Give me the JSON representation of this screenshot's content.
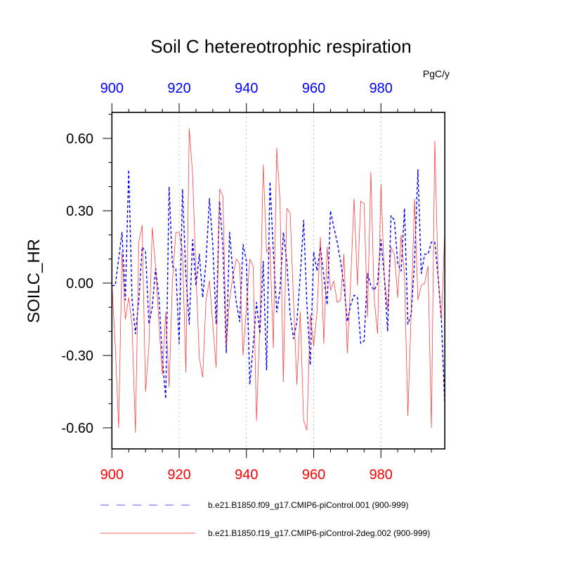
{
  "chart_data": {
    "type": "line",
    "title": "Soil C hetereotrophic respiration",
    "units": "PgC/y",
    "ylabel": "SOILC_HR",
    "xlabel": "",
    "xlim": [
      900,
      999
    ],
    "ylim": [
      -0.69,
      0.71
    ],
    "x_ticks": [
      "900",
      "920",
      "940",
      "960",
      "980"
    ],
    "y_ticks": [
      "0.60",
      "0.30",
      "0.00",
      "-0.30",
      "-0.60"
    ],
    "grid": "vertical dotted at major x ticks",
    "top_axis_color": "#0000ff",
    "bottom_axis_color": "#ff0000",
    "legend_position": "bottom",
    "x_start": 900,
    "series": [
      {
        "name": "b.e21.B1850.f09_g17.CMIP6-piControl.001 (900-999)",
        "color": "#0000ff",
        "style": "dashed",
        "values": [
          -0.01,
          -0.01,
          0.1,
          0.21,
          -0.07,
          0.47,
          -0.07,
          -0.21,
          -0.07,
          0.15,
          0.13,
          -0.17,
          -0.1,
          0.06,
          -0.06,
          -0.31,
          -0.48,
          0.4,
          0.07,
          0.06,
          -0.25,
          0.39,
          0.03,
          -0.17,
          0.18,
          -0.01,
          0.12,
          -0.06,
          0.09,
          0.35,
          0.16,
          -0.17,
          0.34,
          0.15,
          -0.29,
          0.21,
          0.04,
          -0.08,
          -0.16,
          0.16,
          0.09,
          -0.42,
          -0.26,
          -0.08,
          -0.21,
          0.09,
          -0.36,
          0.42,
          0.13,
          -0.12,
          -0.03,
          0.21,
          0.09,
          -0.13,
          -0.23,
          -0.16,
          0.03,
          0.26,
          -0.09,
          -0.34,
          0.13,
          0.05,
          0.15,
          0.03,
          -0.09,
          0.3,
          0.23,
          0.17,
          0.09,
          -0.01,
          -0.16,
          -0.09,
          -0.05,
          -0.06,
          -0.25,
          -0.24,
          0.04,
          -0.01,
          -0.03,
          0.0,
          0.18,
          0.03,
          -0.2,
          0.28,
          0.26,
          0.08,
          0.05,
          0.31,
          -0.17,
          -0.13,
          0.09,
          0.47,
          0.04,
          0.12,
          0.12,
          0.17,
          0.17,
          0.03,
          -0.16,
          -0.51
        ]
      },
      {
        "name": "b.e21.B1850.f19_g17.CMIP6-piControl-2deg.002 (900-999)",
        "color": "#ff0000",
        "style": "solid",
        "values": [
          0.0,
          -0.26,
          -0.6,
          0.13,
          -0.15,
          -0.06,
          -0.17,
          -0.62,
          0.17,
          0.24,
          -0.45,
          -0.26,
          0.23,
          0.07,
          -0.17,
          -0.38,
          -0.12,
          -0.43,
          0.01,
          0.21,
          0.21,
          0.13,
          -0.37,
          0.64,
          0.45,
          0.03,
          -0.31,
          -0.39,
          -0.07,
          0.01,
          -0.17,
          -0.35,
          0.39,
          0.36,
          -0.26,
          -0.07,
          0.03,
          0.1,
          0.08,
          -0.3,
          -0.1,
          0.1,
          0.07,
          -0.57,
          -0.17,
          0.49,
          0.13,
          0.15,
          -0.27,
          0.56,
          0.34,
          -0.41,
          0.31,
          0.29,
          -0.07,
          -0.42,
          -0.12,
          -0.57,
          -0.61,
          -0.13,
          -0.26,
          -0.12,
          0.19,
          -0.25,
          0.15,
          -0.03,
          0.01,
          -0.08,
          -0.07,
          0.12,
          -0.29,
          0.01,
          0.35,
          -0.01,
          0.34,
          0.33,
          -0.14,
          0.46,
          -0.07,
          -0.21,
          0.41,
          0.03,
          -0.11,
          0.15,
          0.12,
          -0.06,
          0.2,
          0.03,
          -0.55,
          -0.12,
          0.35,
          -0.07,
          -0.01,
          0.0,
          0.07,
          -0.6,
          0.59,
          0.03,
          -0.15,
          0.22
        ]
      }
    ]
  }
}
